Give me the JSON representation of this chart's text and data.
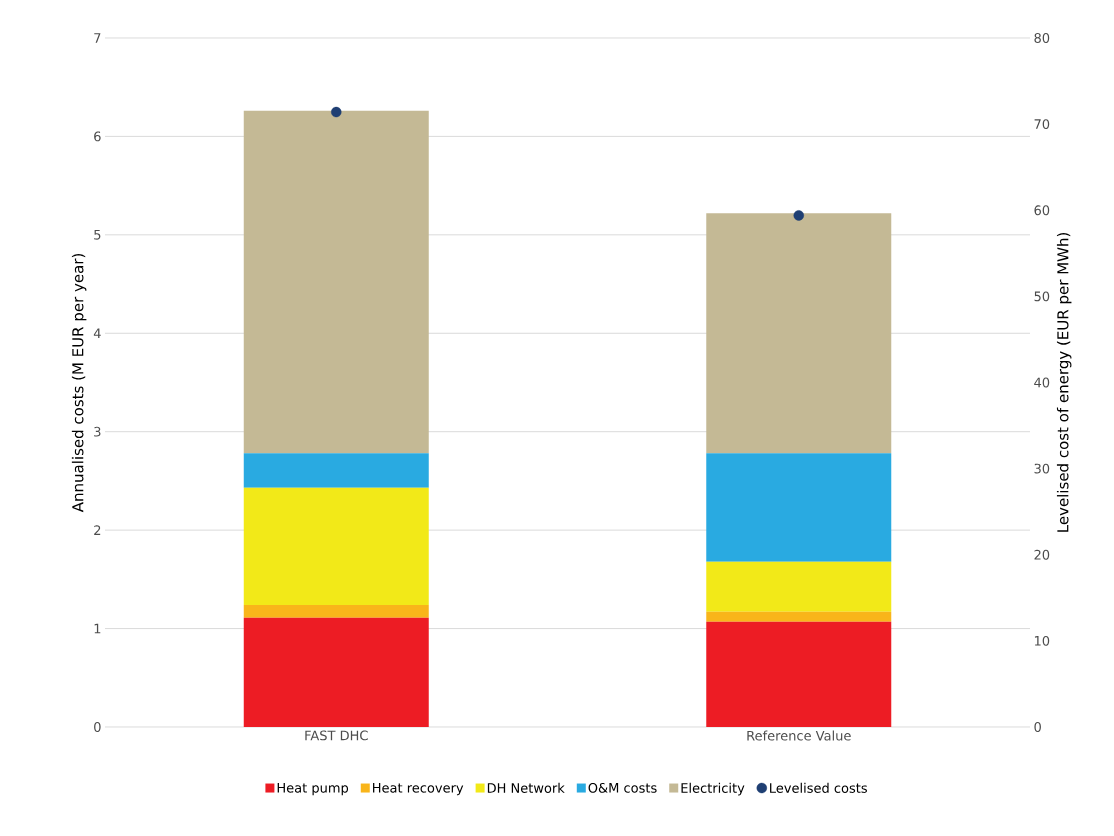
{
  "chart_data": {
    "type": "bar",
    "stacked": true,
    "categories": [
      "FAST DHC",
      "Reference Value"
    ],
    "series": [
      {
        "name": "Heat pump",
        "color": "#ed1c24",
        "values": [
          1.11,
          1.07
        ]
      },
      {
        "name": "Heat recovery",
        "color": "#f9b51a",
        "values": [
          0.13,
          0.1
        ]
      },
      {
        "name": "DH Network",
        "color": "#f2e918",
        "values": [
          1.19,
          0.51
        ]
      },
      {
        "name": "O&M costs",
        "color": "#29aae1",
        "values": [
          0.35,
          1.1
        ]
      },
      {
        "name": "Electricity",
        "color": "#c4b995",
        "values": [
          3.48,
          2.44
        ]
      },
      {
        "name": "Levelised costs",
        "color": "#1f3f73",
        "type": "scatter",
        "axis": "y2",
        "values": [
          71.4,
          59.4
        ]
      }
    ],
    "ylabel": "Annualised costs (M EUR per year)",
    "y2label": "Levelised cost of energy (EUR per MWh)",
    "ylim": [
      0,
      7
    ],
    "yticks": [
      0,
      1,
      2,
      3,
      4,
      5,
      6,
      7
    ],
    "y2lim": [
      0,
      80
    ],
    "y2ticks": [
      0,
      10,
      20,
      30,
      40,
      50,
      60,
      70,
      80
    ],
    "grid": "y",
    "legend": "bottom",
    "marker": "circle"
  }
}
